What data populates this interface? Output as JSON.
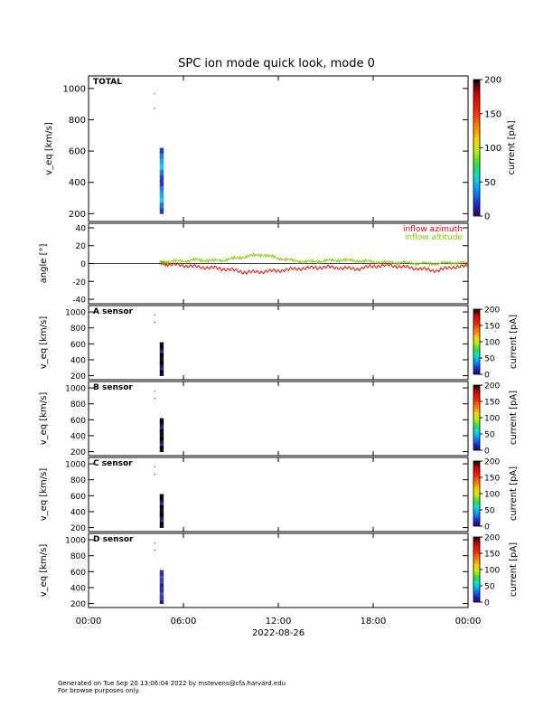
{
  "title": "SPC ion mode quick look, mode 0",
  "footer": {
    "line1": "Generated on Tue Sep 20 13:06:04 2022 by mstevens@cfa.harvard.edu",
    "line2": "For browse purposes only."
  },
  "chart_data": [
    {
      "type": "heatmap",
      "panel": "TOTAL",
      "label": "TOTAL",
      "ylabel": "v_eq [km/s]",
      "ylim": [
        150,
        1080
      ],
      "yticks": [
        200,
        400,
        600,
        800,
        1000
      ],
      "xlim": [
        "00:00",
        "24:00"
      ],
      "colorbar": {
        "label": "current [pA]",
        "range": [
          0,
          200
        ],
        "ticks": [
          0,
          50,
          100,
          150,
          200
        ]
      },
      "data": {
        "time_start": "04:30",
        "time_end": "04:45",
        "v_min": 200,
        "v_max": 620,
        "dominant_color": "blue/cyan"
      }
    },
    {
      "type": "line",
      "panel": "angle",
      "ylabel": "angle [°]",
      "ylim": [
        -45,
        45
      ],
      "yticks": [
        -40,
        -20,
        0,
        20,
        40
      ],
      "x": [
        "04:30",
        "05:00",
        "06:00",
        "07:00",
        "08:00",
        "09:00",
        "10:00",
        "11:00",
        "12:00",
        "13:00",
        "14:00",
        "15:00",
        "16:00",
        "17:00",
        "18:00",
        "19:00",
        "20:00",
        "21:00",
        "22:00",
        "23:00",
        "24:00"
      ],
      "series": [
        {
          "name": "inflow azimuth",
          "color": "#ff0000",
          "values": [
            0,
            -1,
            -2,
            -4,
            -5,
            -7,
            -10,
            -9,
            -8,
            -6,
            -5,
            -4,
            -5,
            -6,
            -3,
            -2,
            -4,
            -6,
            -8,
            -4,
            -3
          ]
        },
        {
          "name": "inflow altitude",
          "color": "#7fd000",
          "values": [
            1,
            2,
            3,
            4,
            3,
            5,
            8,
            10,
            6,
            3,
            2,
            3,
            4,
            3,
            2,
            1,
            1,
            0,
            0,
            1,
            0
          ]
        }
      ]
    },
    {
      "type": "heatmap",
      "panel": "A",
      "label": "A sensor",
      "ylabel": "v_eq [km/s]",
      "ylim": [
        150,
        1080
      ],
      "yticks": [
        200,
        400,
        600,
        800,
        1000
      ],
      "colorbar": {
        "label": "current [pA]",
        "range": [
          0,
          200
        ],
        "ticks": [
          0,
          50,
          100,
          150,
          200
        ]
      },
      "data": {
        "time_start": "04:30",
        "time_end": "04:45",
        "v_min": 200,
        "v_max": 620,
        "dominant_color": "black/dark blue"
      }
    },
    {
      "type": "heatmap",
      "panel": "B",
      "label": "B sensor",
      "ylabel": "v_eq [km/s]",
      "ylim": [
        150,
        1080
      ],
      "yticks": [
        200,
        400,
        600,
        800,
        1000
      ],
      "colorbar": {
        "label": "current [pA]",
        "range": [
          0,
          200
        ],
        "ticks": [
          0,
          50,
          100,
          150,
          200
        ]
      },
      "data": {
        "time_start": "04:30",
        "time_end": "04:45",
        "v_min": 200,
        "v_max": 620,
        "dominant_color": "black/dark blue"
      }
    },
    {
      "type": "heatmap",
      "panel": "C",
      "label": "C sensor",
      "ylabel": "v_eq [km/s]",
      "ylim": [
        150,
        1080
      ],
      "yticks": [
        200,
        400,
        600,
        800,
        1000
      ],
      "colorbar": {
        "label": "current [pA]",
        "range": [
          0,
          200
        ],
        "ticks": [
          0,
          50,
          100,
          150,
          200
        ]
      },
      "data": {
        "time_start": "04:30",
        "time_end": "04:45",
        "v_min": 200,
        "v_max": 620,
        "dominant_color": "black/dark blue"
      }
    },
    {
      "type": "heatmap",
      "panel": "D",
      "label": "D sensor",
      "ylabel": "v_eq [km/s]",
      "ylim": [
        150,
        1080
      ],
      "yticks": [
        200,
        400,
        600,
        800,
        1000
      ],
      "colorbar": {
        "label": "current [pA]",
        "range": [
          0,
          200
        ],
        "ticks": [
          0,
          50,
          100,
          150,
          200
        ]
      },
      "data": {
        "time_start": "04:30",
        "time_end": "04:45",
        "v_min": 200,
        "v_max": 620,
        "dominant_color": "blue/purple"
      }
    }
  ],
  "x_axis": {
    "ticks": [
      "00:00",
      "06:00",
      "12:00",
      "18:00",
      "00:00"
    ],
    "date_label": "2022-08-26"
  }
}
